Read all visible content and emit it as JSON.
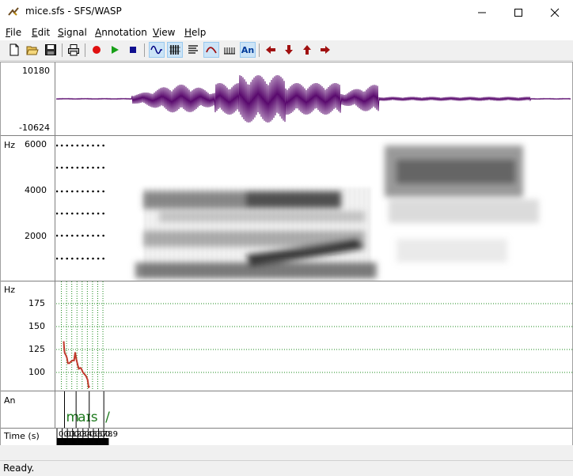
{
  "window": {
    "title": "mice.sfs - SFS/WASP"
  },
  "menu": [
    {
      "label": "File",
      "ul": "F",
      "rest": "ile"
    },
    {
      "label": "Edit",
      "ul": "E",
      "rest": "dit"
    },
    {
      "label": "Signal",
      "ul": "S",
      "rest": "ignal"
    },
    {
      "label": "Annotation",
      "ul": "A",
      "rest": "nnotation"
    },
    {
      "label": "View",
      "ul": "V",
      "rest": "iew"
    },
    {
      "label": "Help",
      "ul": "H",
      "rest": "elp"
    }
  ],
  "toolbar": {
    "annotation_button_label": "An"
  },
  "waveform": {
    "max_label": "10180",
    "min_label": "-10624"
  },
  "spectrogram": {
    "unit": "Hz",
    "ticks": [
      "6000",
      "4000",
      "2000"
    ]
  },
  "pitch": {
    "unit": "Hz",
    "ticks": [
      "175",
      "150",
      "125",
      "100"
    ],
    "contour_hz": [
      [
        0.13,
        134
      ],
      [
        0.14,
        125
      ],
      [
        0.15,
        121
      ],
      [
        0.17,
        119
      ],
      [
        0.19,
        116
      ],
      [
        0.21,
        110
      ],
      [
        0.24,
        110
      ],
      [
        0.27,
        112
      ],
      [
        0.3,
        113
      ],
      [
        0.33,
        113
      ],
      [
        0.35,
        122
      ],
      [
        0.37,
        115
      ],
      [
        0.4,
        108
      ],
      [
        0.42,
        104
      ],
      [
        0.45,
        105
      ],
      [
        0.47,
        104
      ],
      [
        0.5,
        100
      ],
      [
        0.53,
        98
      ],
      [
        0.56,
        96
      ],
      [
        0.59,
        92
      ],
      [
        0.61,
        84
      ],
      [
        0.63,
        85
      ]
    ]
  },
  "annotation": {
    "label": "An",
    "segments": [
      "m",
      "aɪ",
      "s",
      "/"
    ],
    "times": [
      0.145,
      0.368,
      0.621,
      0.902
    ]
  },
  "time_axis": {
    "label": "Time (s)",
    "ticks": [
      "0.0",
      "0.1",
      "0.2",
      "0.3",
      "0.4",
      "0.5",
      "0.6",
      "0.7",
      "0.8",
      "0.9"
    ]
  },
  "status": {
    "text": "Ready."
  },
  "colors": {
    "waveform": "#5a0a6e",
    "pitch": "#c0392b",
    "annotation_text": "#1e7a1e",
    "grid": "#1a8a1a"
  }
}
